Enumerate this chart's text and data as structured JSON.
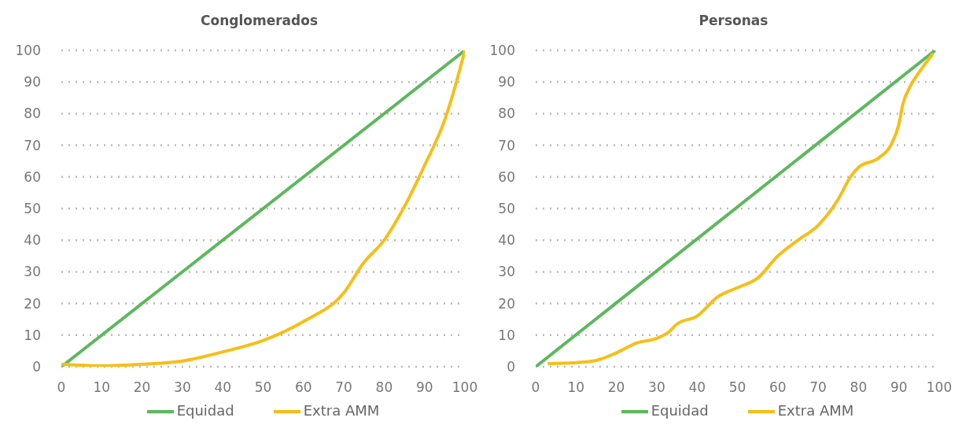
{
  "chart_data": [
    {
      "type": "line",
      "title": "Conglomerados",
      "xlim": [
        0,
        100
      ],
      "xticks": [
        0,
        10,
        20,
        30,
        40,
        50,
        60,
        70,
        80,
        90,
        100
      ],
      "ylim": [
        0,
        100
      ],
      "yticks": [
        0,
        10,
        20,
        30,
        40,
        50,
        60,
        70,
        80,
        90,
        100
      ],
      "grid": "y",
      "legend": "bottom",
      "series": [
        {
          "name": "Equidad",
          "color": "#5cb85c",
          "x": [
            0,
            100
          ],
          "values": [
            0,
            100
          ]
        },
        {
          "name": "Extra AMM",
          "color": "#f7be16",
          "x": [
            0,
            10,
            20,
            30,
            40,
            50,
            60,
            70,
            75,
            80,
            85,
            90,
            95,
            97,
            100
          ],
          "values": [
            0.8,
            0.3,
            0.8,
            1.8,
            4.7,
            8.3,
            14.3,
            23.4,
            33,
            40,
            50.6,
            63.6,
            78,
            86,
            100
          ]
        }
      ]
    },
    {
      "type": "line",
      "title": "Personas",
      "xlim": [
        0,
        100
      ],
      "xticks": [
        0,
        10,
        20,
        30,
        40,
        50,
        60,
        70,
        80,
        90,
        100
      ],
      "ylim": [
        0,
        100
      ],
      "yticks": [
        0,
        10,
        20,
        30,
        40,
        50,
        60,
        70,
        80,
        90,
        100
      ],
      "grid": "y",
      "legend": "bottom",
      "series": [
        {
          "name": "Equidad",
          "color": "#5cb85c",
          "x": [
            0,
            99
          ],
          "values": [
            0,
            100
          ]
        },
        {
          "name": "Extra AMM",
          "color": "#f7be16",
          "x": [
            3,
            10,
            15,
            20,
            25,
            30,
            33,
            35,
            40,
            45,
            50,
            55,
            60,
            65,
            70,
            75,
            78,
            80,
            85,
            88,
            90,
            91,
            93,
            96,
            98.5
          ],
          "values": [
            1,
            1.3,
            2,
            4.4,
            7.5,
            9,
            11,
            13.5,
            16,
            22,
            25,
            28,
            35,
            40,
            44.7,
            53,
            60,
            63,
            66,
            70,
            76.6,
            83,
            89,
            94.8,
            99
          ]
        }
      ]
    }
  ]
}
